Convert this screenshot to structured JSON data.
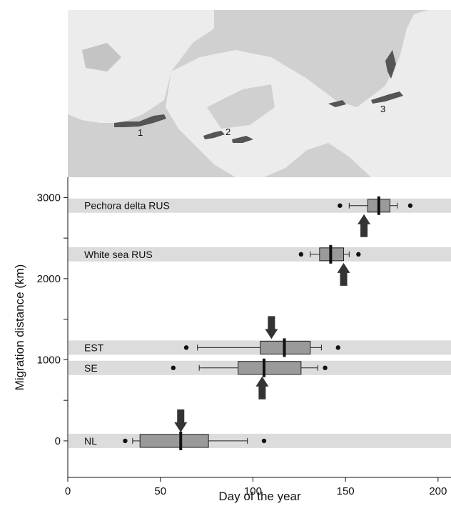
{
  "map": {
    "region_labels": [
      "1",
      "2",
      "3"
    ]
  },
  "chart_data": {
    "type": "boxplot",
    "xlabel": "Day of the year",
    "ylabel": "Migration distance (km)",
    "xlim": [
      0,
      207
    ],
    "ylim": [
      -450,
      3250
    ],
    "x_ticks": [
      0,
      50,
      100,
      150,
      200
    ],
    "y_ticks": [
      0,
      1000,
      2000,
      3000
    ],
    "y_minor_ticks": [
      500,
      1500,
      2500
    ],
    "grid": false,
    "colors": {
      "band": "#dcdcdc",
      "box": "#9a9a9a",
      "median": "#111111",
      "arrow": "#333333",
      "map_sea": "#d0d0d0",
      "map_land": "#ececec",
      "map_sites": "#555555"
    },
    "groups": [
      {
        "label": "Pechora delta RUS",
        "distance": 2900,
        "whisker_low": 152,
        "q1": 162,
        "median": 168,
        "q3": 174,
        "whisker_high": 178,
        "outliers": [
          147,
          185
        ],
        "arrow_day": 160,
        "arrow_direction": "up"
      },
      {
        "label": "White sea RUS",
        "distance": 2300,
        "whisker_low": 131,
        "q1": 136,
        "median": 142,
        "q3": 149,
        "whisker_high": 152,
        "outliers": [
          126,
          157
        ],
        "arrow_day": 149,
        "arrow_direction": "up"
      },
      {
        "label": "EST",
        "distance": 1150,
        "whisker_low": 70,
        "q1": 104,
        "median": 117,
        "q3": 131,
        "whisker_high": 137,
        "outliers": [
          64,
          146
        ],
        "arrow_day": 110,
        "arrow_direction": "down"
      },
      {
        "label": "SE",
        "distance": 900,
        "whisker_low": 71,
        "q1": 92,
        "median": 106,
        "q3": 126,
        "whisker_high": 135,
        "outliers": [
          57,
          139
        ],
        "arrow_day": 105,
        "arrow_direction": "up"
      },
      {
        "label": "NL",
        "distance": 0,
        "whisker_low": 35,
        "q1": 39,
        "median": 61,
        "q3": 76,
        "whisker_high": 97,
        "outliers": [
          31,
          106
        ],
        "arrow_day": 61,
        "arrow_direction": "down"
      }
    ]
  }
}
